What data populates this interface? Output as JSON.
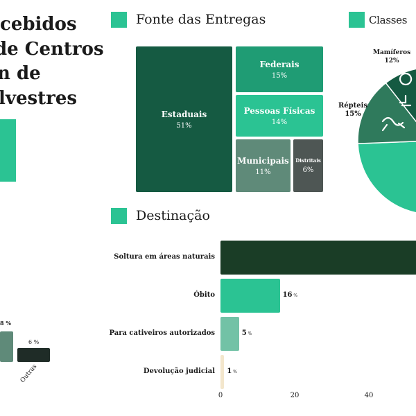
{
  "main_title": {
    "lines": [
      "cebidos",
      "de Centros",
      "n de",
      "lvestres"
    ]
  },
  "colors": {
    "accent": "#2bc393",
    "dark": "#155a42",
    "mid": "#1f9c74",
    "gray": "#5f8a79",
    "charcoal": "#4e5654",
    "darkest": "#1a3d26",
    "pale": "#72c2a6",
    "cream": "#f3e6cc"
  },
  "left_chart": {
    "partial_value": "8 %",
    "outras_value": "6 %",
    "outras_label": "Outras"
  },
  "chart_data": [
    {
      "type": "treemap",
      "title": "Fonte das Entregas",
      "items": [
        {
          "name": "Estaduais",
          "value": 51,
          "label": "51%"
        },
        {
          "name": "Federais",
          "value": 15,
          "label": "15%"
        },
        {
          "name": "Pessoas Físicas",
          "value": 14,
          "label": "14%"
        },
        {
          "name": "Municipais",
          "value": 11,
          "label": "11%"
        },
        {
          "name": "Distritais",
          "value": 6,
          "label": "6%"
        }
      ]
    },
    {
      "type": "pie",
      "title": "Classes",
      "slices": [
        {
          "name": "Mamíferos",
          "value": 12,
          "label": "12%"
        },
        {
          "name": "Répteis",
          "value": 15,
          "label": "15%"
        }
      ]
    },
    {
      "type": "bar",
      "orientation": "horizontal",
      "title": "Destinação",
      "categories": [
        "Soltura em áreas naturais",
        "Óbito",
        "Para cativeiros autorizados",
        "Devolução judicial"
      ],
      "values": [
        78,
        16,
        5,
        1
      ],
      "value_labels": [
        "",
        "16",
        "5",
        "1"
      ],
      "unit": "%",
      "xticks": [
        "0",
        "20",
        "40"
      ]
    }
  ]
}
